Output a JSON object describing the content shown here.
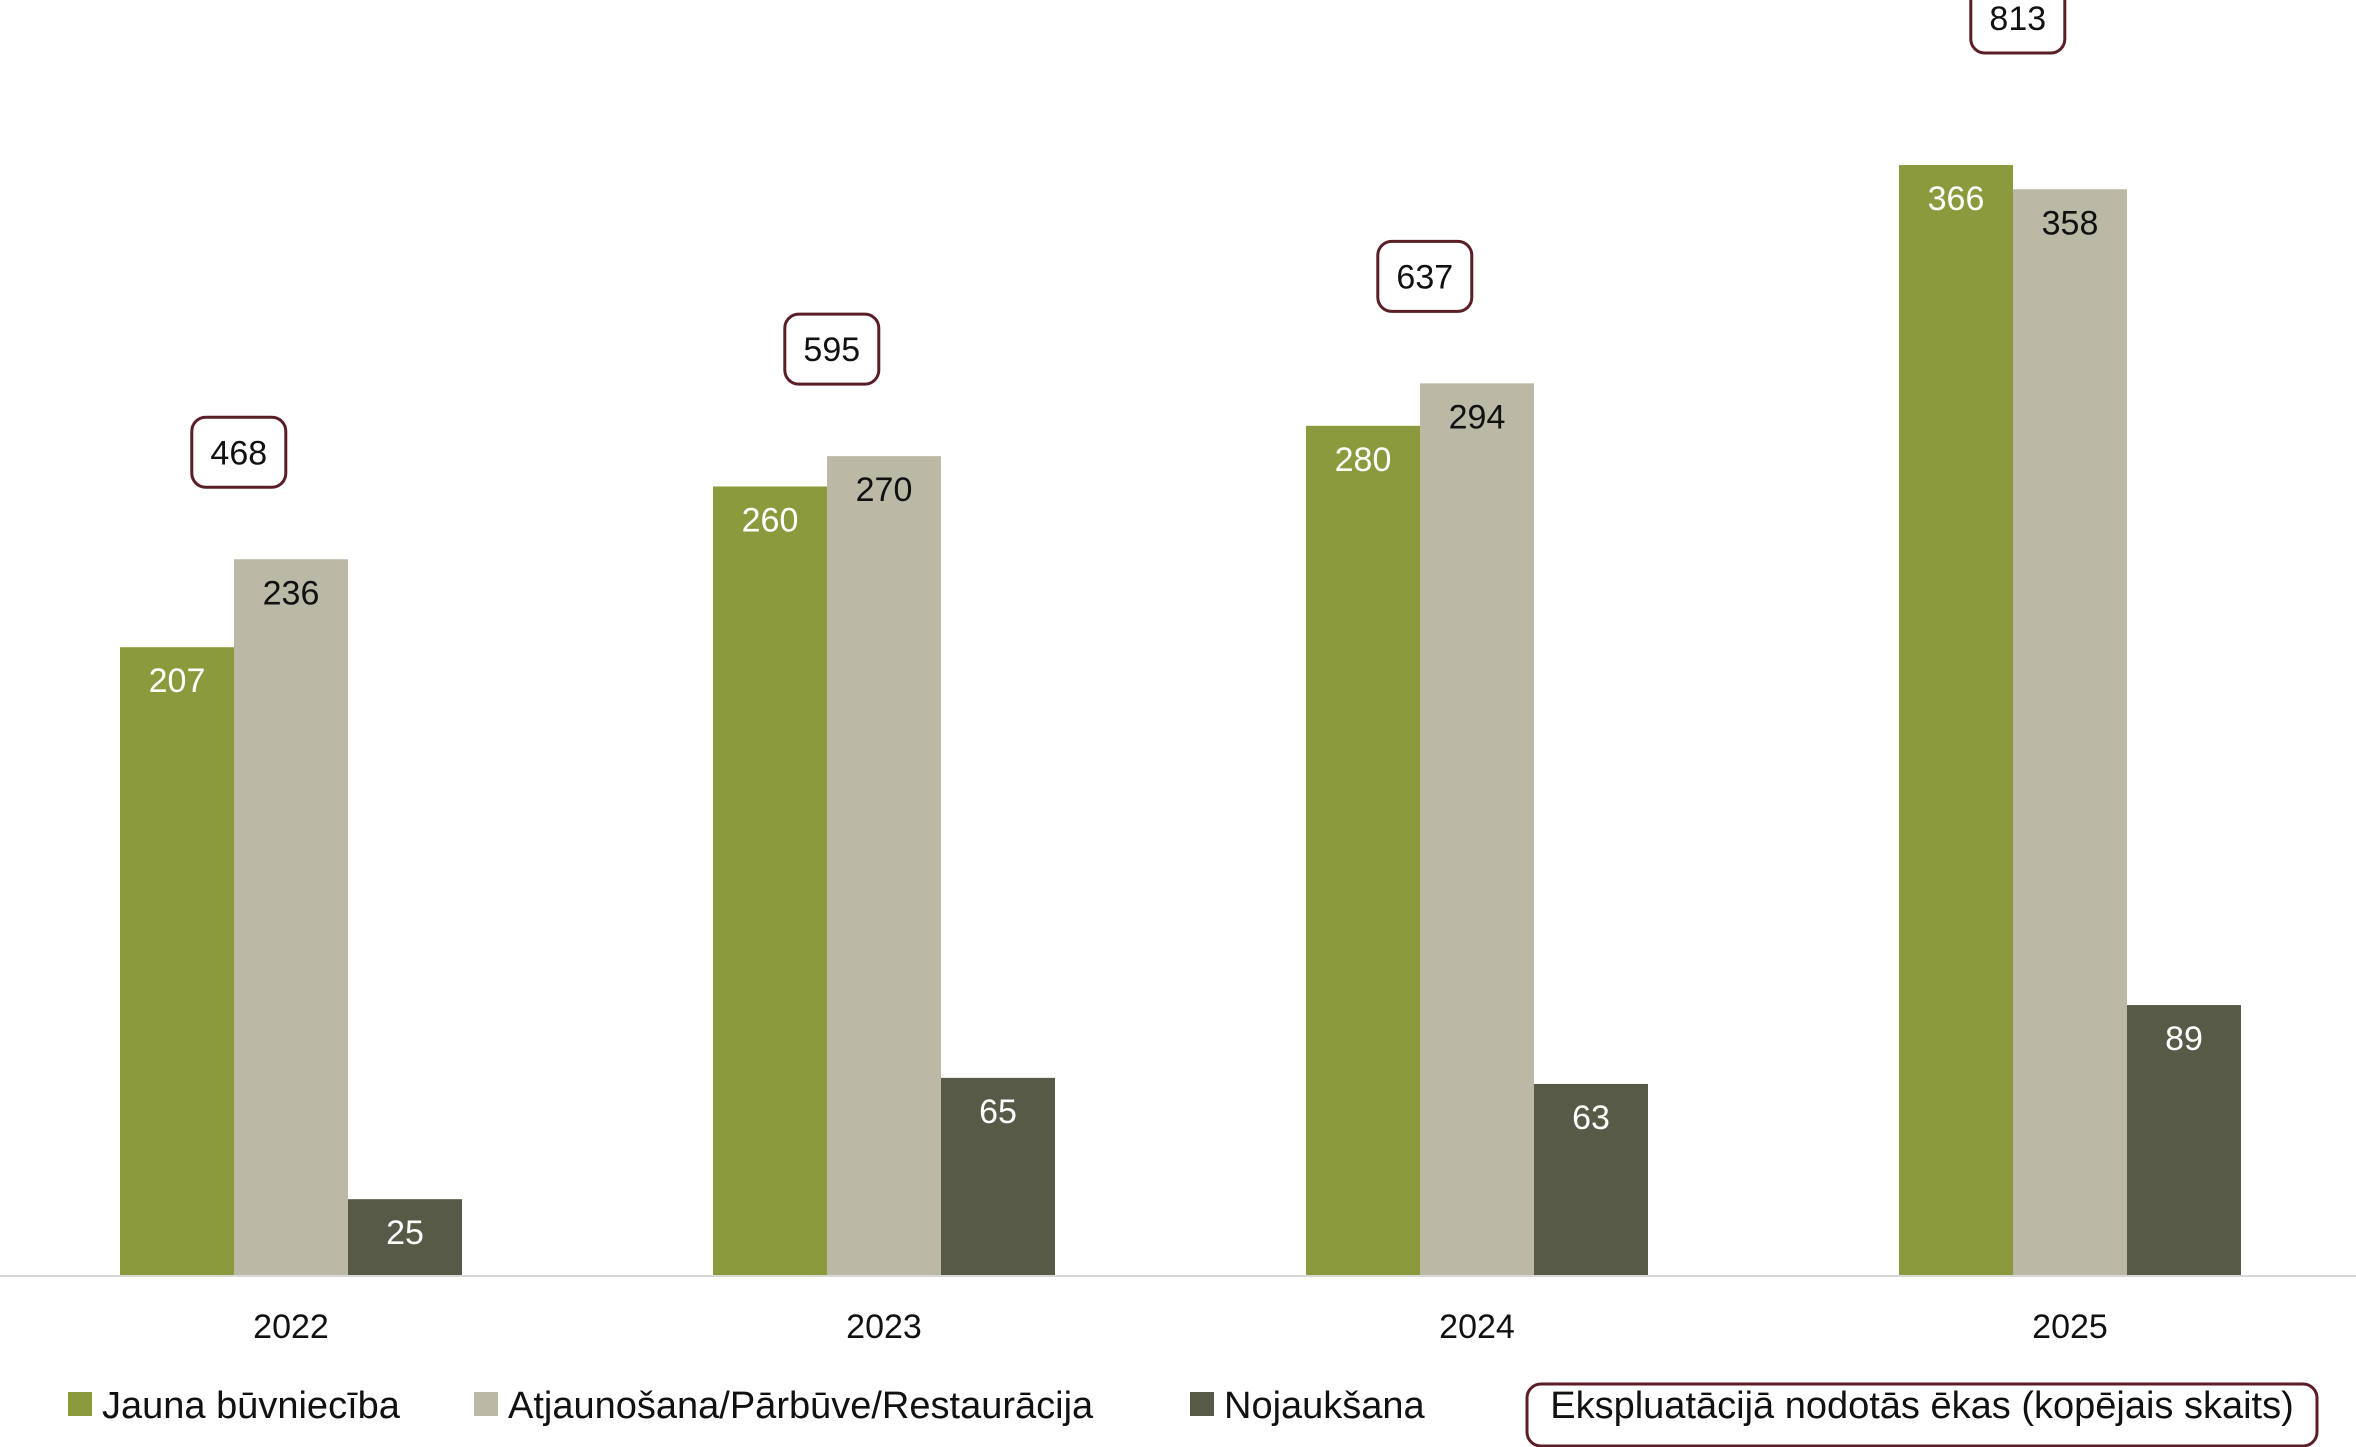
{
  "chart_data": {
    "type": "bar",
    "categories": [
      "2022",
      "2023",
      "2024",
      "2025"
    ],
    "series": [
      {
        "name": "Jauna būvniecība",
        "values": [
          207,
          260,
          280,
          366
        ],
        "color": "#8c9a3e",
        "label_color": "#ffffff"
      },
      {
        "name": "Atjaunošana/Pārbūve/Restaurācija",
        "values": [
          236,
          270,
          294,
          358
        ],
        "color": "#bab9a6",
        "label_color": "#111111"
      },
      {
        "name": "Nojaukšana",
        "values": [
          25,
          65,
          63,
          89
        ],
        "color": "#575a47",
        "label_color": "#ffffff"
      }
    ],
    "totals": {
      "name": "Ekspluatācijā nodotās ēkas (kopējais skaits)",
      "values": [
        468,
        595,
        637,
        813
      ],
      "border_color": "#5a1f26"
    },
    "ylim": [
      0,
      380
    ],
    "grid": false,
    "legend_position": "bottom",
    "title": "",
    "xlabel": "",
    "ylabel": ""
  }
}
